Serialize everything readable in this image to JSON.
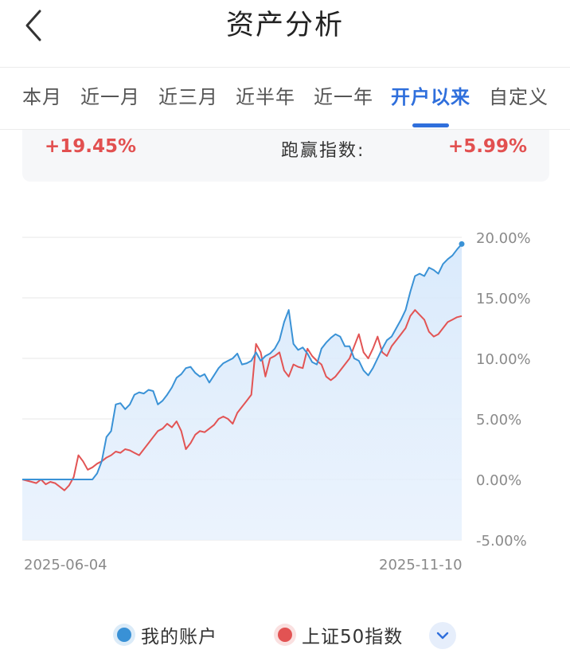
{
  "header": {
    "title": "资产分析",
    "back_icon": "chevron-left-icon"
  },
  "tabs": [
    {
      "label": "本月",
      "active": false
    },
    {
      "label": "近一月",
      "active": false
    },
    {
      "label": "近三月",
      "active": false
    },
    {
      "label": "近半年",
      "active": false
    },
    {
      "label": "近一年",
      "active": false
    },
    {
      "label": "开户以来",
      "active": true
    },
    {
      "label": "自定义",
      "active": false
    }
  ],
  "summary": {
    "return_value": "+19.45%",
    "beat_label": "跑赢指数:",
    "beat_value": "+5.99%"
  },
  "colors": {
    "accent": "#2f6fdc",
    "account_line": "#3a92d6",
    "index_line": "#e25454",
    "positive": "#e25050"
  },
  "chart_data": {
    "type": "line",
    "x_start_label": "2025-06-04",
    "x_end_label": "2025-11-10",
    "y_ticks": [
      "20.00%",
      "15.00%",
      "10.00%",
      "5.00%",
      "0.00%",
      "-5.00%"
    ],
    "ylim": [
      -5,
      20
    ],
    "grid": true,
    "legend_position": "bottom",
    "series": [
      {
        "name": "我的账户",
        "color": "#3a92d6",
        "values": [
          0,
          0,
          0,
          0,
          0,
          0,
          0,
          0,
          0,
          0,
          0,
          0,
          0,
          0,
          0,
          0,
          0.5,
          1.5,
          3.5,
          4.0,
          6.2,
          6.3,
          5.8,
          6.2,
          7.0,
          7.2,
          7.1,
          7.4,
          7.3,
          6.2,
          6.5,
          7.0,
          7.6,
          8.4,
          8.7,
          9.2,
          9.3,
          8.8,
          8.5,
          8.7,
          8.0,
          8.6,
          9.2,
          9.6,
          9.8,
          10.0,
          10.4,
          9.5,
          9.6,
          9.8,
          10.5,
          9.8,
          10.2,
          10.4,
          10.8,
          11.5,
          13.0,
          14.0,
          11.2,
          10.7,
          10.9,
          10.4,
          9.7,
          9.5,
          10.8,
          11.3,
          11.7,
          12.0,
          11.8,
          11.0,
          11.0,
          10.0,
          9.8,
          9.0,
          8.6,
          9.2,
          10.0,
          10.8,
          11.5,
          11.8,
          12.5,
          13.2,
          14.0,
          15.5,
          16.8,
          17.0,
          16.8,
          17.5,
          17.3,
          17.0,
          17.8,
          18.2,
          18.5,
          19.0,
          19.45
        ]
      },
      {
        "name": "上证50指数",
        "color": "#e25454",
        "values": [
          0,
          -0.1,
          -0.2,
          -0.3,
          0,
          -0.4,
          -0.2,
          -0.3,
          -0.6,
          -0.9,
          -0.5,
          0.2,
          2.0,
          1.5,
          0.8,
          1.0,
          1.3,
          1.5,
          1.8,
          2.0,
          2.3,
          2.2,
          2.5,
          2.4,
          2.2,
          2.0,
          2.5,
          3.0,
          3.5,
          4.0,
          4.2,
          4.6,
          4.3,
          4.8,
          4.0,
          2.5,
          3.0,
          3.7,
          4.0,
          3.9,
          4.2,
          4.5,
          5.0,
          5.2,
          5.0,
          4.6,
          5.5,
          6.0,
          6.5,
          7.0,
          11.2,
          10.5,
          8.5,
          10.0,
          10.2,
          10.5,
          9.0,
          8.5,
          9.5,
          9.3,
          9.2,
          10.8,
          10.2,
          9.8,
          9.5,
          8.5,
          8.2,
          8.5,
          9.0,
          9.5,
          10.0,
          11.0,
          12.0,
          10.5,
          10.0,
          10.8,
          11.8,
          10.5,
          10.2,
          11.0,
          11.5,
          12.0,
          12.5,
          13.5,
          14.0,
          13.6,
          13.2,
          12.2,
          11.8,
          12.0,
          12.5,
          13.0,
          13.2,
          13.4,
          13.5
        ]
      }
    ]
  },
  "legend": {
    "items": [
      {
        "label": "我的账户",
        "color": "#3a92d6"
      },
      {
        "label": "上证50指数",
        "color": "#e25454"
      }
    ],
    "toggle_icon": "chevron-down-icon"
  }
}
